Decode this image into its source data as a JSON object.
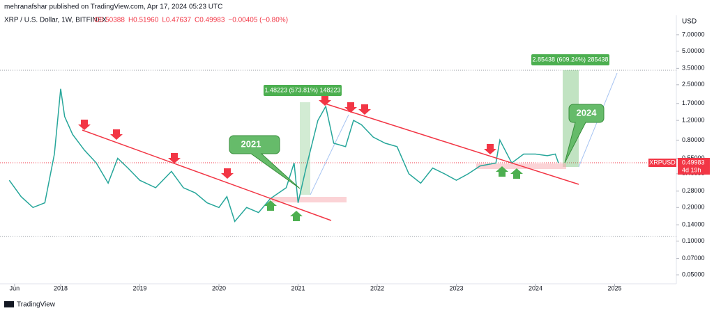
{
  "chart_data": {
    "type": "line",
    "title": "mehranafshar published on TradingView.com, Apr 17, 2024 05:23 UTC",
    "subtitle": "XRP / U.S. Dollar, 1W, BITFINEX",
    "ohlc": [
      "O0.50388",
      "H0.51960",
      "L0.47637",
      "C0.49983",
      "−0.00405 (−0.80%)"
    ],
    "currency": "USD",
    "symbol": "XRPUSD",
    "last_price": "0.49983",
    "countdown": "4d 19h",
    "annotations": [
      "2021",
      "2024",
      "1.48223 (573.81%) 148223",
      "2.85438 (609.24%) 285438"
    ],
    "brand": "TradingView",
    "log": true,
    "grid": false,
    "xlim": [
      2017.233,
      2025.78
    ],
    "xticks": [
      {
        "value": 2017.417,
        "label": "Jun"
      },
      2018,
      2019,
      2020,
      2021,
      2022,
      2023,
      2024,
      2025
    ],
    "ylim": [
      0.0404,
      10
    ],
    "yticks": [
      {
        "value": 7,
        "label": "7.00000"
      },
      {
        "value": 5,
        "label": "5.00000"
      },
      {
        "value": 3.5,
        "label": "3.50000"
      },
      {
        "value": 2.5,
        "label": "2.50000"
      },
      {
        "value": 1.7,
        "label": "1.70000"
      },
      {
        "value": 1.2,
        "label": "1.20000"
      },
      {
        "value": 0.8,
        "label": "0.80000"
      },
      {
        "value": 0.55,
        "label": "0.55000"
      },
      {
        "value": 0.4,
        "label": "0.40000"
      },
      {
        "value": 0.28,
        "label": "0.28000"
      },
      {
        "value": 0.2,
        "label": "0.20000"
      },
      {
        "value": 0.14,
        "label": "0.14000"
      },
      {
        "value": 0.1,
        "label": "0.10000"
      },
      {
        "value": 0.07,
        "label": "0.07000"
      },
      {
        "value": 0.05,
        "label": "0.05000"
      }
    ],
    "series": [
      {
        "name": "XRPUSD",
        "color": "#26a69a",
        "x": [
          2017.35,
          2017.5,
          2017.65,
          2017.8,
          2017.92,
          2018.0,
          2018.05,
          2018.15,
          2018.3,
          2018.45,
          2018.6,
          2018.72,
          2018.85,
          2019.0,
          2019.2,
          2019.4,
          2019.55,
          2019.7,
          2019.85,
          2020.0,
          2020.1,
          2020.2,
          2020.35,
          2020.5,
          2020.65,
          2020.85,
          2020.95,
          2021.0,
          2021.1,
          2021.25,
          2021.35,
          2021.45,
          2021.6,
          2021.7,
          2021.8,
          2021.95,
          2022.1,
          2022.25,
          2022.4,
          2022.55,
          2022.7,
          2022.85,
          2023.0,
          2023.15,
          2023.3,
          2023.5,
          2023.55,
          2023.7,
          2023.85,
          2024.0,
          2024.15,
          2024.25,
          2024.29
        ],
        "values": [
          0.35,
          0.25,
          0.2,
          0.22,
          0.6,
          2.3,
          1.3,
          0.9,
          0.65,
          0.5,
          0.33,
          0.55,
          0.45,
          0.35,
          0.3,
          0.42,
          0.3,
          0.27,
          0.22,
          0.2,
          0.25,
          0.15,
          0.2,
          0.18,
          0.24,
          0.3,
          0.5,
          0.22,
          0.45,
          1.2,
          1.6,
          0.75,
          0.7,
          1.2,
          1.1,
          0.85,
          0.75,
          0.7,
          0.4,
          0.33,
          0.45,
          0.4,
          0.35,
          0.4,
          0.47,
          0.5,
          0.8,
          0.5,
          0.6,
          0.6,
          0.58,
          0.6,
          0.5
        ]
      }
    ]
  }
}
